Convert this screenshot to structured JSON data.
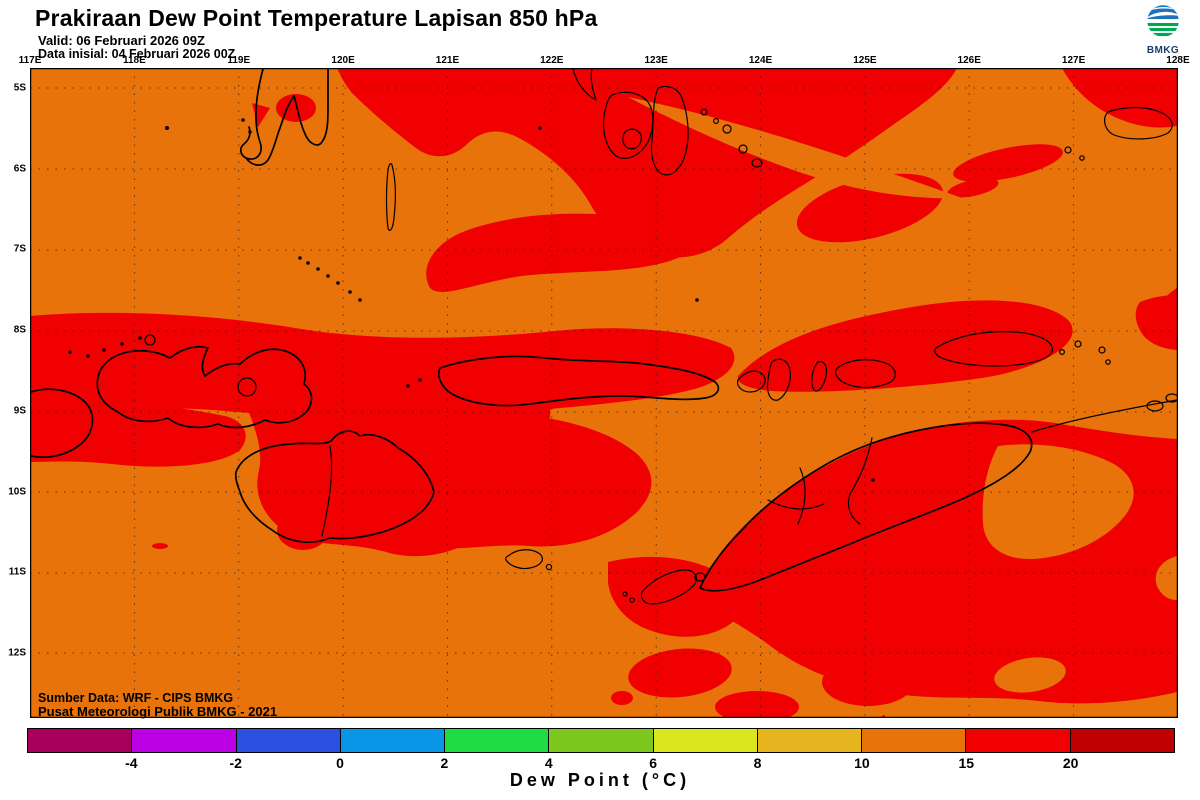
{
  "header": {
    "title": "Prakiraan Dew Point Temperature Lapisan 850 hPa",
    "valid_line": "Valid: 06 Februari 2026 09Z",
    "init_line": "Data inisial: 04 Februari 2026 00Z",
    "logo_text": "BMKG"
  },
  "map": {
    "credit_line1": "Sumber Data: WRF - CIPS BMKG",
    "credit_line2": "Pusat Meteorologi Publik BMKG - 2021",
    "lon_labels": [
      "117E",
      "118E",
      "119E",
      "120E",
      "121E",
      "122E",
      "123E",
      "124E",
      "125E",
      "126E",
      "127E",
      "128E"
    ],
    "lat_labels": [
      "5S",
      "6S",
      "7S",
      "8S",
      "9S",
      "10S",
      "11S",
      "12S"
    ]
  },
  "colorbar": {
    "title": "Dew Point (°C)",
    "tick_labels": [
      "-4",
      "-2",
      "0",
      "2",
      "4",
      "6",
      "8",
      "10",
      "15",
      "20"
    ],
    "segment_colors": [
      "#A8005A",
      "#BC00E6",
      "#2B50DF",
      "#0A96E6",
      "#1EDC46",
      "#7DC81E",
      "#DCE61E",
      "#E6B41E",
      "#E8730A",
      "#F00000",
      "#C00000"
    ]
  },
  "colors": {
    "map_background": "#E8730A",
    "red_region": "#F00000",
    "coastline": "#000000",
    "frame": "#000000",
    "logo_blue": "#1C75BC",
    "logo_green": "#00A651"
  },
  "legend_meaning": {
    "map_background_range": "10 to 15 °C",
    "red_region_range": "15 to 20 °C"
  }
}
